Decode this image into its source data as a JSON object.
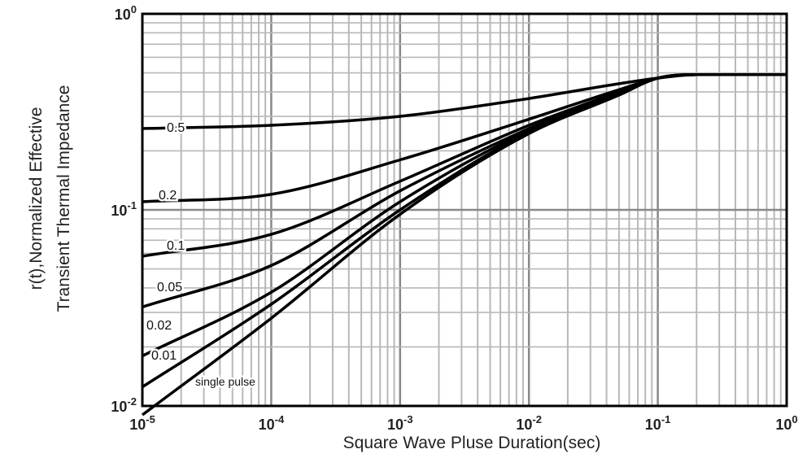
{
  "chart_data": {
    "type": "line",
    "xscale": "log",
    "yscale": "log",
    "xlim": [
      1e-05,
      1
    ],
    "ylim": [
      0.01,
      1
    ],
    "grid": true,
    "xlabel": "Square Wave Pluse Duration(sec)",
    "ylabel_lines": [
      "r(t),Normalized Effective",
      "Transient Thermal Impedance"
    ],
    "x_ticks": [
      {
        "base": "10",
        "exp": "-5"
      },
      {
        "base": "10",
        "exp": "-4"
      },
      {
        "base": "10",
        "exp": "-3"
      },
      {
        "base": "10",
        "exp": "-2"
      },
      {
        "base": "10",
        "exp": "-1"
      },
      {
        "base": "10",
        "exp": "0"
      }
    ],
    "y_ticks": [
      {
        "base": "10",
        "exp": "-2"
      },
      {
        "base": "10",
        "exp": "-1"
      },
      {
        "base": "10",
        "exp": "0"
      }
    ],
    "series": [
      {
        "name": "0.5",
        "x": [
          1e-05,
          0.0001,
          0.001,
          0.01,
          0.05,
          0.1,
          0.2,
          1
        ],
        "y": [
          0.26,
          0.27,
          0.3,
          0.37,
          0.44,
          0.47,
          0.49,
          0.49
        ]
      },
      {
        "name": "0.2",
        "x": [
          1e-05,
          0.0001,
          0.001,
          0.01,
          0.05,
          0.1,
          0.2,
          1
        ],
        "y": [
          0.11,
          0.12,
          0.18,
          0.29,
          0.41,
          0.47,
          0.49,
          0.49
        ]
      },
      {
        "name": "0.1",
        "x": [
          1e-05,
          0.0001,
          0.001,
          0.01,
          0.05,
          0.1,
          0.2,
          1
        ],
        "y": [
          0.058,
          0.075,
          0.14,
          0.27,
          0.4,
          0.47,
          0.49,
          0.49
        ]
      },
      {
        "name": "0.05",
        "x": [
          1e-05,
          0.0001,
          0.001,
          0.01,
          0.05,
          0.1,
          0.2,
          1
        ],
        "y": [
          0.032,
          0.052,
          0.125,
          0.26,
          0.4,
          0.47,
          0.49,
          0.49
        ]
      },
      {
        "name": "0.02",
        "x": [
          1e-05,
          0.0001,
          0.001,
          0.01,
          0.05,
          0.1,
          0.2,
          1
        ],
        "y": [
          0.018,
          0.038,
          0.11,
          0.255,
          0.39,
          0.47,
          0.49,
          0.49
        ]
      },
      {
        "name": "0.01",
        "x": [
          1e-05,
          0.0001,
          0.001,
          0.01,
          0.05,
          0.1,
          0.2,
          1
        ],
        "y": [
          0.0125,
          0.033,
          0.1,
          0.25,
          0.39,
          0.47,
          0.49,
          0.49
        ]
      },
      {
        "name": "single pulse",
        "x": [
          1e-05,
          0.0001,
          0.001,
          0.01,
          0.05,
          0.1,
          0.2,
          1
        ],
        "y": [
          0.009,
          0.028,
          0.095,
          0.245,
          0.385,
          0.47,
          0.49,
          0.49
        ]
      }
    ]
  }
}
